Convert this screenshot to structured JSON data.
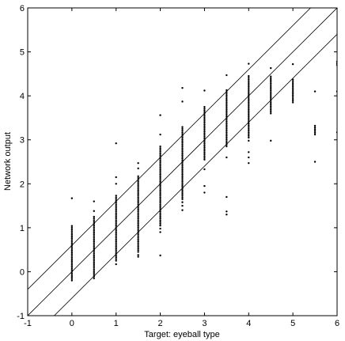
{
  "chart_data": {
    "type": "scatter",
    "title": "",
    "xlabel": "Target: eyeball type",
    "ylabel": "Network output",
    "xlim": [
      -1,
      6
    ],
    "ylim": [
      -1,
      6
    ],
    "xticks": [
      -1,
      0,
      1,
      2,
      3,
      4,
      5,
      6
    ],
    "yticks": [
      -1,
      0,
      1,
      2,
      3,
      4,
      5,
      6
    ],
    "grid": false,
    "reference_lines": [
      {
        "slope": 1,
        "intercept": 0.6
      },
      {
        "slope": 1,
        "intercept": 0
      },
      {
        "slope": 1,
        "intercept": -0.6
      }
    ],
    "columns": [
      {
        "x": 0,
        "min": -0.2,
        "max": 1.05,
        "extra": [
          1.67
        ]
      },
      {
        "x": 0.5,
        "min": -0.15,
        "max": 1.25,
        "extra": [
          1.6,
          1.38
        ]
      },
      {
        "x": 1,
        "min": 0.25,
        "max": 1.75,
        "extra": [
          2.92,
          2.15,
          2.0,
          0.17
        ]
      },
      {
        "x": 1.5,
        "min": 0.45,
        "max": 2.2,
        "extra": [
          2.47,
          2.35,
          0.34,
          0.38
        ]
      },
      {
        "x": 2,
        "min": 1.05,
        "max": 2.85,
        "extra": [
          3.56,
          3.12,
          0.37,
          0.9,
          0.98
        ]
      },
      {
        "x": 2.5,
        "min": 1.65,
        "max": 3.3,
        "extra": [
          4.18,
          3.87,
          1.4,
          1.5,
          1.58
        ]
      },
      {
        "x": 3,
        "min": 2.55,
        "max": 3.75,
        "extra": [
          4.12,
          1.8,
          1.95,
          2.33
        ]
      },
      {
        "x": 3.5,
        "min": 2.85,
        "max": 4.15,
        "extra": [
          4.47,
          1.3,
          1.37,
          1.7,
          2.6
        ]
      },
      {
        "x": 4,
        "min": 3.05,
        "max": 4.45,
        "extra": [
          4.73,
          2.47,
          2.6,
          2.72,
          2.98
        ]
      },
      {
        "x": 4.5,
        "min": 3.6,
        "max": 4.45,
        "extra": [
          4.63,
          2.98
        ]
      },
      {
        "x": 5,
        "min": 3.85,
        "max": 4.4,
        "extra": [
          4.72
        ]
      },
      {
        "x": 5.5,
        "min": 3.12,
        "max": 3.35,
        "extra": [
          4.1,
          2.5
        ]
      },
      {
        "x": 6,
        "min": 4.7,
        "max": 4.8,
        "extra": [
          4.1,
          3.17
        ]
      }
    ]
  }
}
